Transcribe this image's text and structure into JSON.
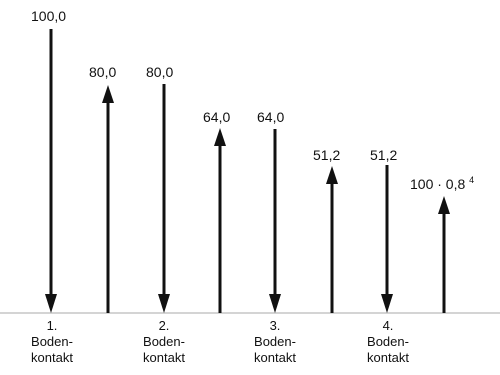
{
  "diagram": {
    "values": [
      "100,0",
      "80,0",
      "80,0",
      "64,0",
      "64,0",
      "51,2",
      "51,2"
    ],
    "final_label": {
      "base": "100 · 0,8",
      "exponent": "4"
    },
    "contacts": [
      [
        "1.",
        "Boden-",
        "kontakt"
      ],
      [
        "2.",
        "Boden-",
        "kontakt"
      ],
      [
        "3.",
        "Boden-",
        "kontakt"
      ],
      [
        "4.",
        "Boden-",
        "kontakt"
      ]
    ],
    "colors": {
      "line": "#111111",
      "text": "#111111",
      "baseline": "#a8a8a8"
    }
  }
}
